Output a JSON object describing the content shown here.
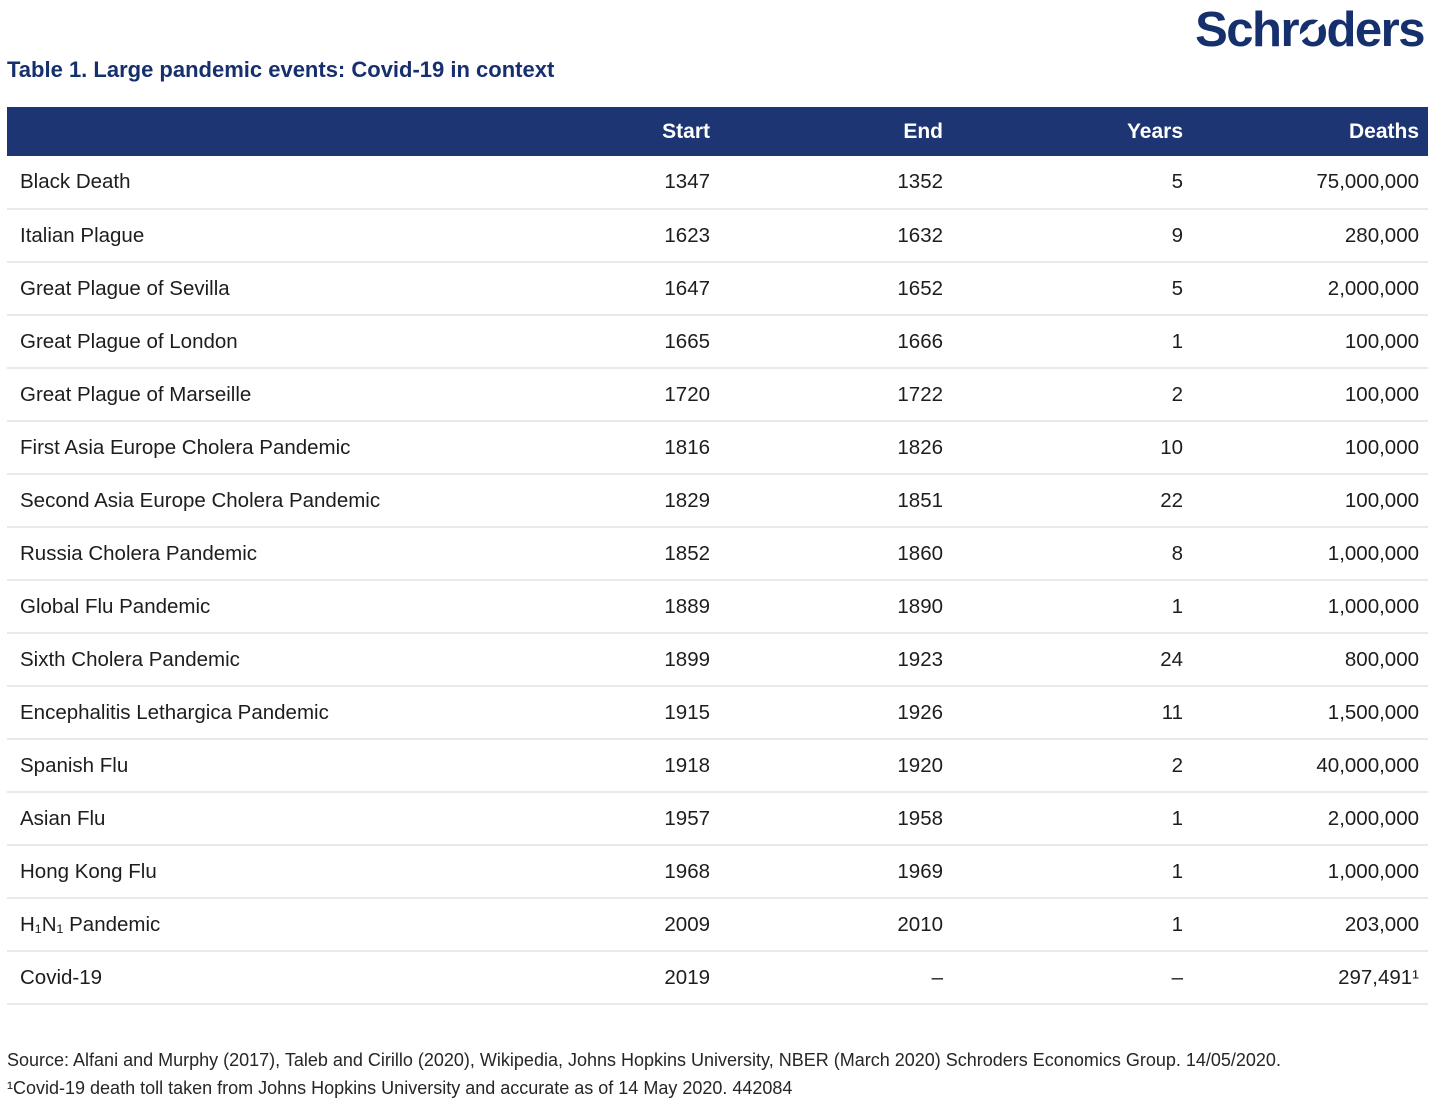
{
  "colors": {
    "navy": "#16306e",
    "navy_band": "#1d3572",
    "row_divider": "#e9e9e9",
    "body_text": "#1d1d1d"
  },
  "logo": {
    "part1": "Schr",
    "part2": "o",
    "part3": "ders"
  },
  "title": "Table 1. Large pandemic events: Covid-19 in context",
  "table": {
    "columns": [
      "",
      "Start",
      "End",
      "Years",
      "Deaths"
    ],
    "rows": [
      {
        "name": "Black Death",
        "start": "1347",
        "end": "1352",
        "years": "5",
        "deaths": "75,000,000"
      },
      {
        "name": "Italian Plague",
        "start": "1623",
        "end": "1632",
        "years": "9",
        "deaths": "280,000"
      },
      {
        "name": "Great Plague of Sevilla",
        "start": "1647",
        "end": "1652",
        "years": "5",
        "deaths": "2,000,000"
      },
      {
        "name": "Great Plague of London",
        "start": "1665",
        "end": "1666",
        "years": "1",
        "deaths": "100,000"
      },
      {
        "name": "Great Plague of Marseille",
        "start": "1720",
        "end": "1722",
        "years": "2",
        "deaths": "100,000"
      },
      {
        "name": "First Asia Europe Cholera Pandemic",
        "start": "1816",
        "end": "1826",
        "years": "10",
        "deaths": "100,000"
      },
      {
        "name": "Second Asia Europe Cholera Pandemic",
        "start": "1829",
        "end": "1851",
        "years": "22",
        "deaths": "100,000"
      },
      {
        "name": "Russia Cholera Pandemic",
        "start": "1852",
        "end": "1860",
        "years": "8",
        "deaths": "1,000,000"
      },
      {
        "name": "Global Flu Pandemic",
        "start": "1889",
        "end": "1890",
        "years": "1",
        "deaths": "1,000,000"
      },
      {
        "name": "Sixth Cholera Pandemic",
        "start": "1899",
        "end": "1923",
        "years": "24",
        "deaths": "800,000"
      },
      {
        "name": "Encephalitis Lethargica Pandemic",
        "start": "1915",
        "end": "1926",
        "years": "11",
        "deaths": "1,500,000"
      },
      {
        "name": "Spanish Flu",
        "start": "1918",
        "end": "1920",
        "years": "2",
        "deaths": "40,000,000"
      },
      {
        "name": "Asian Flu",
        "start": "1957",
        "end": "1958",
        "years": "1",
        "deaths": "2,000,000"
      },
      {
        "name": "Hong Kong Flu",
        "start": "1968",
        "end": "1969",
        "years": "1",
        "deaths": "1,000,000"
      },
      {
        "name": "H₁N₁ Pandemic",
        "start": "2009",
        "end": "2010",
        "years": "1",
        "deaths": "203,000"
      },
      {
        "name": "Covid-19",
        "start": "2019",
        "end": "–",
        "years": "–",
        "deaths": "297,491¹"
      }
    ]
  },
  "footer": {
    "source": "Source: Alfani and Murphy (2017), Taleb and Cirillo (2020), Wikipedia, Johns Hopkins University, NBER (March 2020) Schroders Economics Group. 14/05/2020.",
    "footnote": "¹Covid-19 death toll taken from Johns Hopkins University and accurate as of 14 May 2020. 442084"
  }
}
